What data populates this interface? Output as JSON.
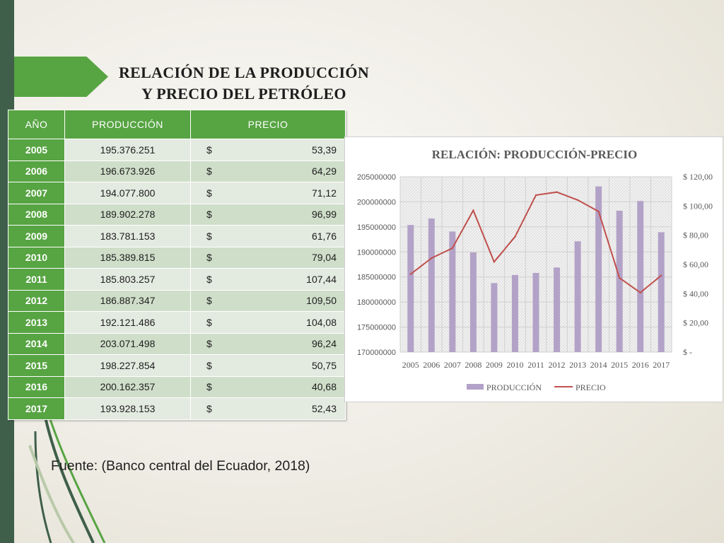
{
  "slide": {
    "title_line1": "RELACIÓN DE LA PRODUCCIÓN",
    "title_line2": "Y PRECIO DEL PETRÓLEO",
    "source": "Fuente: (Banco central del Ecuador, 2018)"
  },
  "table": {
    "headers": [
      "AÑO",
      "PRODUCCIÓN",
      "PRECIO"
    ],
    "currency_symbol": "$",
    "rows": [
      {
        "year": "2005",
        "production": "195.376.251",
        "price": "53,39"
      },
      {
        "year": "2006",
        "production": "196.673.926",
        "price": "64,29"
      },
      {
        "year": "2007",
        "production": "194.077.800",
        "price": "71,12"
      },
      {
        "year": "2008",
        "production": "189.902.278",
        "price": "96,99"
      },
      {
        "year": "2009",
        "production": "183.781.153",
        "price": "61,76"
      },
      {
        "year": "2010",
        "production": "185.389.815",
        "price": "79,04"
      },
      {
        "year": "2011",
        "production": "185.803.257",
        "price": "107,44"
      },
      {
        "year": "2012",
        "production": "186.887.347",
        "price": "109,50"
      },
      {
        "year": "2013",
        "production": "192.121.486",
        "price": "104,08"
      },
      {
        "year": "2014",
        "production": "203.071.498",
        "price": "96,24"
      },
      {
        "year": "2015",
        "production": "198.227.854",
        "price": "50,75"
      },
      {
        "year": "2016",
        "production": "200.162.357",
        "price": "40,68"
      },
      {
        "year": "2017",
        "production": "193.928.153",
        "price": "52,43"
      }
    ]
  },
  "chart_data": {
    "type": "bar",
    "title": "RELACIÓN: PRODUCCIÓN-PRECIO",
    "categories": [
      "2005",
      "2006",
      "2007",
      "2008",
      "2009",
      "2010",
      "2011",
      "2012",
      "2013",
      "2014",
      "2015",
      "2016",
      "2017"
    ],
    "series": [
      {
        "name": "PRODUCCIÓN",
        "type": "bar",
        "axis": "left",
        "color": "#b3a2c7",
        "values": [
          195376251,
          196673926,
          194077800,
          189902278,
          183781153,
          185389815,
          185803257,
          186887347,
          192121486,
          203071498,
          198227854,
          200162357,
          193928153
        ]
      },
      {
        "name": "PRECIO",
        "type": "line",
        "axis": "right",
        "color": "#c0504d",
        "values": [
          53.39,
          64.29,
          71.12,
          96.99,
          61.76,
          79.04,
          107.44,
          109.5,
          104.08,
          96.24,
          50.75,
          40.68,
          52.43
        ]
      }
    ],
    "left_axis": {
      "min": 170000000,
      "max": 205000000,
      "step": 5000000,
      "tick_labels": [
        "170000000",
        "175000000",
        "180000000",
        "185000000",
        "190000000",
        "195000000",
        "200000000",
        "205000000"
      ]
    },
    "right_axis": {
      "min": 0,
      "max": 120,
      "step": 20,
      "tick_labels": [
        "$ -",
        "$ 20,00",
        "$ 40,00",
        "$ 60,00",
        "$ 80,00",
        "$ 100,00",
        "$ 120,00"
      ]
    },
    "legend_position": "bottom",
    "grid": true
  }
}
